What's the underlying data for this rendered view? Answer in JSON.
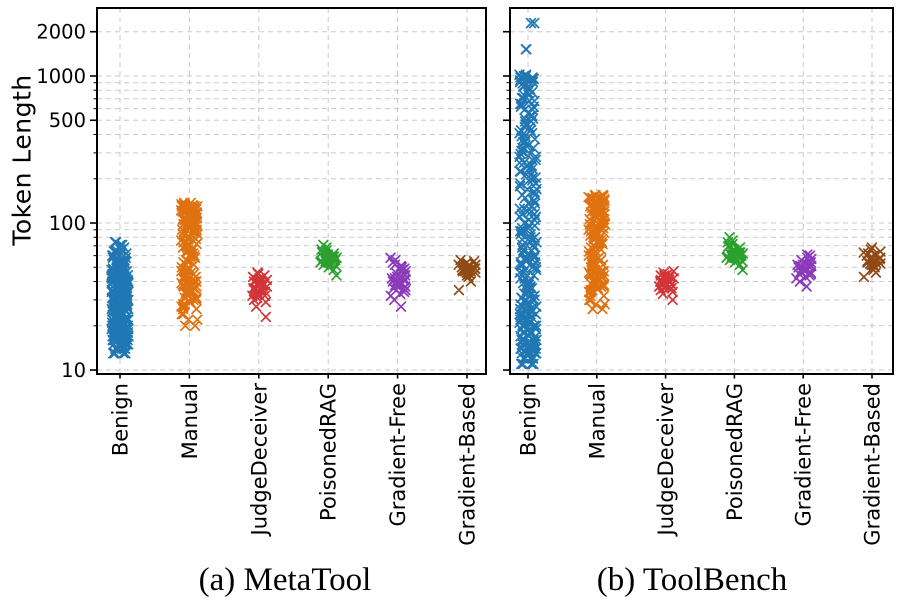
{
  "figure": {
    "ylabel": "Token Length",
    "captions": {
      "a": "(a) MetaTool",
      "b": "(b) ToolBench"
    }
  },
  "chart_data": [
    {
      "type": "scatter",
      "panel": "a",
      "title": "(a) MetaTool",
      "ylabel": "Token Length",
      "yscale": "log",
      "ylim": [
        9.4,
        2900
      ],
      "yticks": [
        10,
        100,
        500,
        1000,
        2000
      ],
      "grid": true,
      "marker": "x",
      "categories": [
        "Benign",
        "Manual",
        "JudgeDeceiver",
        "PoisonedRAG",
        "Gradient-Free",
        "Gradient-Based"
      ],
      "series": [
        {
          "name": "Benign",
          "color": "#1f77b4",
          "values": [
            13,
            13,
            14,
            14,
            14,
            15,
            15,
            15,
            15,
            16,
            16,
            16,
            16,
            17,
            17,
            17,
            17,
            17,
            18,
            18,
            18,
            18,
            18,
            19,
            19,
            19,
            19,
            20,
            20,
            20,
            20,
            20,
            21,
            21,
            21,
            21,
            22,
            22,
            22,
            22,
            23,
            23,
            23,
            23,
            24,
            24,
            24,
            24,
            25,
            25,
            25,
            25,
            26,
            26,
            26,
            27,
            27,
            27,
            28,
            28,
            28,
            29,
            29,
            29,
            30,
            30,
            30,
            31,
            31,
            32,
            32,
            33,
            33,
            34,
            34,
            35,
            35,
            36,
            36,
            37,
            37,
            38,
            38,
            39,
            39,
            40,
            40,
            41,
            41,
            42,
            42,
            43,
            43,
            44,
            44,
            45,
            45,
            46,
            46,
            47,
            47,
            48,
            48,
            49,
            50,
            51,
            52,
            53,
            54,
            55,
            56,
            58,
            60,
            62,
            64,
            66,
            68,
            71,
            74
          ]
        },
        {
          "name": "Manual",
          "color": "#e0710f",
          "values": [
            20,
            22,
            24,
            26,
            27,
            28,
            29,
            30,
            31,
            32,
            33,
            34,
            35,
            36,
            37,
            38,
            39,
            40,
            41,
            42,
            43,
            44,
            45,
            46,
            47,
            48,
            50,
            52,
            54,
            56,
            58,
            60,
            62,
            64,
            66,
            68,
            70,
            72,
            74,
            76,
            78,
            80,
            82,
            84,
            86,
            88,
            90,
            92,
            94,
            96,
            98,
            100,
            100,
            102,
            104,
            105,
            106,
            108,
            110,
            110,
            112,
            114,
            115,
            116,
            118,
            120,
            120,
            122,
            124,
            125,
            126,
            128,
            128,
            130,
            130,
            132,
            134,
            137
          ]
        },
        {
          "name": "JudgeDeceiver",
          "color": "#d23438",
          "values": [
            23,
            27,
            29,
            30,
            31,
            32,
            32,
            33,
            33,
            34,
            34,
            35,
            35,
            35,
            36,
            36,
            37,
            37,
            38,
            38,
            39,
            39,
            40,
            40,
            41,
            41,
            42,
            42,
            43,
            44,
            45,
            46
          ]
        },
        {
          "name": "PoisonedRAG",
          "color": "#2ca02c",
          "values": [
            44,
            48,
            50,
            51,
            52,
            53,
            54,
            54,
            55,
            55,
            56,
            56,
            57,
            57,
            58,
            58,
            59,
            59,
            60,
            60,
            61,
            61,
            62,
            63,
            64,
            65,
            66,
            68,
            71
          ]
        },
        {
          "name": "Gradient-Free",
          "color": "#8b3aba",
          "values": [
            27,
            30,
            32,
            33,
            34,
            35,
            36,
            36,
            37,
            37,
            38,
            38,
            39,
            39,
            40,
            40,
            41,
            41,
            42,
            42,
            43,
            43,
            44,
            45,
            46,
            47,
            48,
            49,
            50,
            51,
            52,
            54,
            56,
            58
          ]
        },
        {
          "name": "Gradient-Based",
          "color": "#8f4a15",
          "values": [
            35,
            40,
            43,
            44,
            45,
            45,
            46,
            46,
            46,
            47,
            47,
            47,
            48,
            48,
            48,
            48,
            49,
            49,
            49,
            50,
            50,
            50,
            51,
            51,
            52,
            52,
            53,
            54,
            55,
            56
          ]
        }
      ]
    },
    {
      "type": "scatter",
      "panel": "b",
      "title": "(b) ToolBench",
      "ylabel": "Token Length",
      "yscale": "log",
      "ylim": [
        9.4,
        2900
      ],
      "yticks": [
        10,
        100,
        500,
        1000,
        2000
      ],
      "grid": true,
      "marker": "x",
      "categories": [
        "Benign",
        "Manual",
        "JudgeDeceiver",
        "PoisonedRAG",
        "Gradient-Free",
        "Gradient-Based"
      ],
      "series": [
        {
          "name": "Benign",
          "color": "#1f77b4",
          "values": [
            11,
            11,
            12,
            12,
            12,
            13,
            13,
            13,
            14,
            14,
            14,
            15,
            15,
            15,
            16,
            16,
            16,
            17,
            17,
            18,
            18,
            19,
            19,
            20,
            20,
            21,
            21,
            22,
            22,
            23,
            23,
            24,
            24,
            25,
            25,
            26,
            27,
            28,
            29,
            30,
            31,
            32,
            33,
            34,
            35,
            36,
            37,
            38,
            39,
            40,
            42,
            44,
            46,
            48,
            50,
            52,
            54,
            56,
            58,
            60,
            62,
            65,
            68,
            71,
            74,
            77,
            80,
            84,
            88,
            92,
            96,
            100,
            105,
            110,
            115,
            120,
            125,
            130,
            136,
            142,
            148,
            155,
            162,
            170,
            178,
            186,
            195,
            204,
            214,
            224,
            234,
            245,
            257,
            269,
            282,
            295,
            309,
            324,
            339,
            355,
            372,
            390,
            408,
            427,
            447,
            468,
            490,
            513,
            537,
            562,
            589,
            617,
            646,
            676,
            708,
            741,
            776,
            813,
            851,
            891,
            910,
            933,
            955,
            977,
            1000,
            1020,
            1520,
            2290
          ]
        },
        {
          "name": "Manual",
          "color": "#e0710f",
          "values": [
            26,
            28,
            30,
            32,
            34,
            35,
            36,
            37,
            38,
            39,
            40,
            41,
            42,
            43,
            44,
            45,
            46,
            47,
            48,
            50,
            52,
            54,
            56,
            58,
            60,
            62,
            64,
            66,
            68,
            70,
            72,
            74,
            76,
            78,
            80,
            82,
            84,
            86,
            88,
            90,
            92,
            94,
            96,
            98,
            100,
            103,
            106,
            109,
            112,
            115,
            118,
            120,
            121,
            124,
            125,
            127,
            130,
            130,
            133,
            135,
            136,
            139,
            140,
            142,
            145,
            145,
            148,
            150,
            152,
            155
          ]
        },
        {
          "name": "JudgeDeceiver",
          "color": "#d23438",
          "values": [
            30,
            33,
            34,
            35,
            36,
            36,
            37,
            37,
            38,
            38,
            39,
            39,
            40,
            40,
            40,
            41,
            41,
            42,
            42,
            43,
            43,
            44,
            44,
            45,
            46,
            47
          ]
        },
        {
          "name": "PoisonedRAG",
          "color": "#2ca02c",
          "values": [
            48,
            52,
            54,
            55,
            56,
            57,
            58,
            58,
            59,
            59,
            60,
            60,
            61,
            61,
            62,
            62,
            63,
            63,
            64,
            65,
            66,
            67,
            68,
            69,
            70,
            72,
            74,
            76,
            80
          ]
        },
        {
          "name": "Gradient-Free",
          "color": "#8b3aba",
          "values": [
            37,
            40,
            42,
            43,
            44,
            45,
            45,
            46,
            46,
            47,
            47,
            48,
            48,
            49,
            49,
            50,
            50,
            51,
            51,
            52,
            52,
            53,
            54,
            55,
            56,
            57,
            58,
            60,
            61
          ]
        },
        {
          "name": "Gradient-Based",
          "color": "#8f4a15",
          "values": [
            43,
            46,
            48,
            49,
            50,
            51,
            52,
            52,
            53,
            53,
            54,
            54,
            55,
            55,
            56,
            56,
            57,
            57,
            58,
            58,
            59,
            60,
            61,
            62,
            63,
            64,
            66,
            68
          ]
        }
      ]
    }
  ],
  "style": {
    "grid_color": "#c9c9c9",
    "axis_color": "#000000",
    "background": "#ffffff"
  }
}
